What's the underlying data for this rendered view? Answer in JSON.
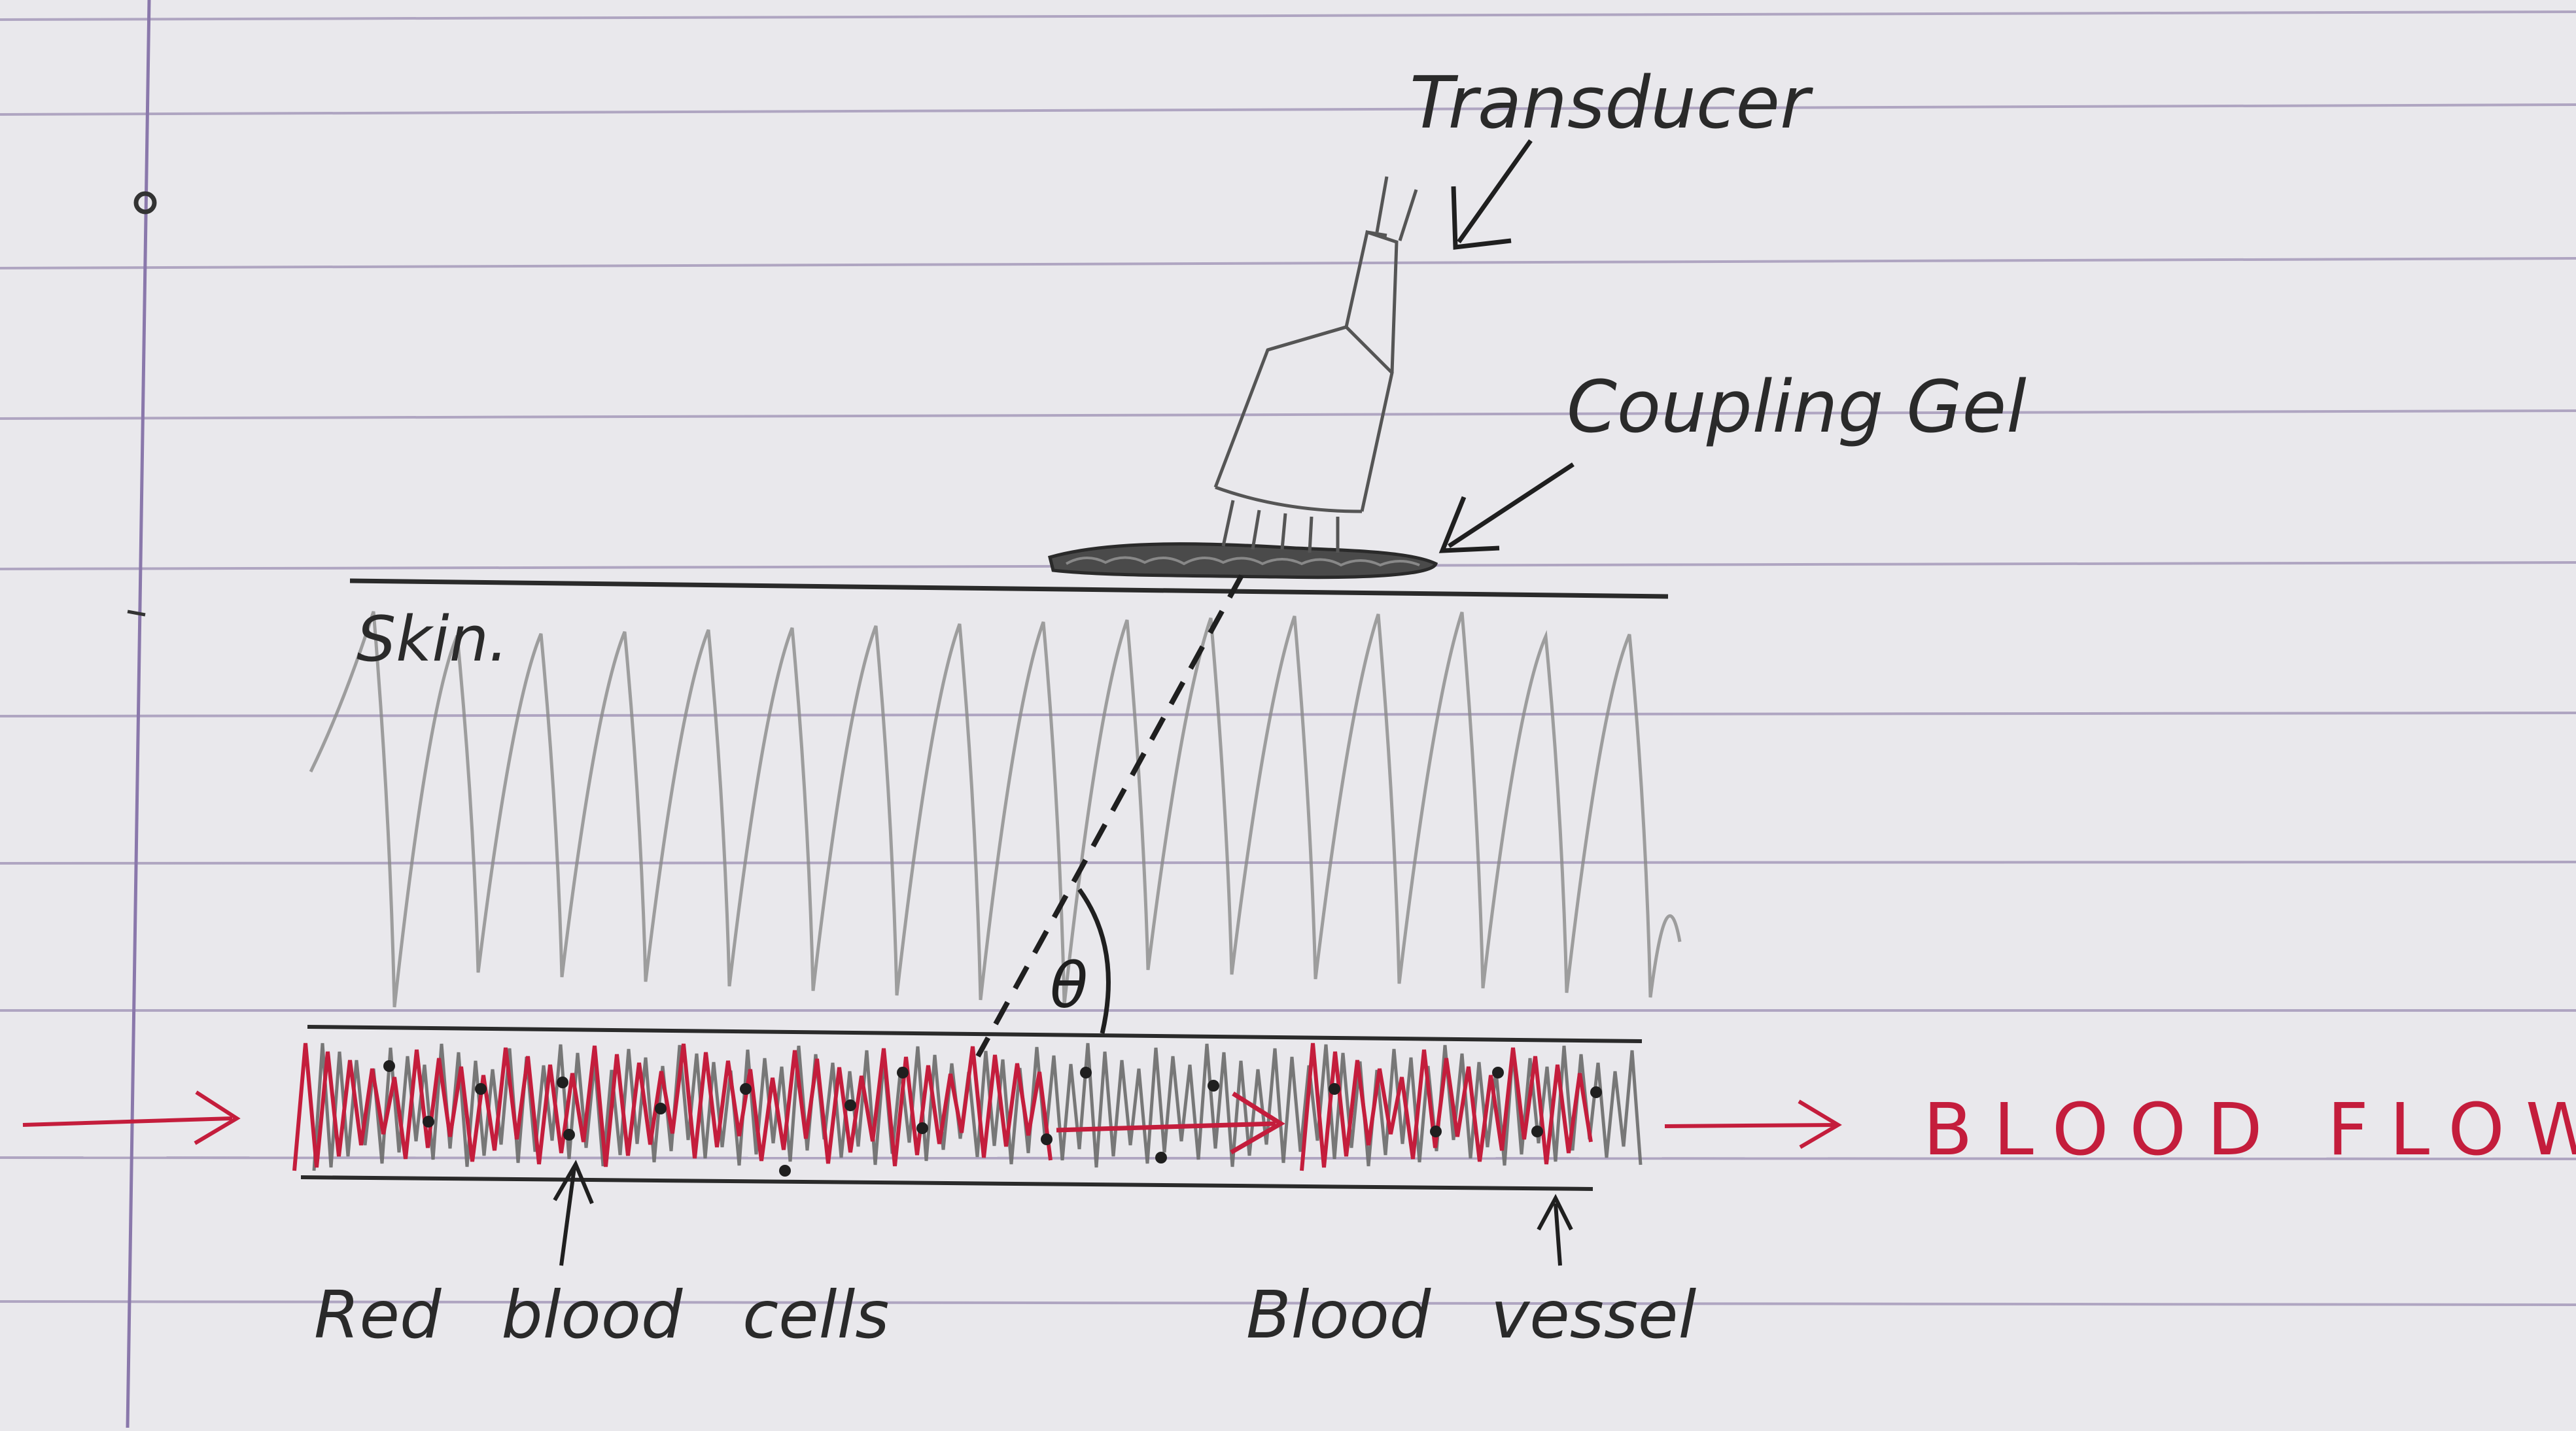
{
  "labels": {
    "transducer": "Transducer",
    "coupling_gel": "Coupling Gel",
    "skin": "Skin.",
    "theta": "θ",
    "blood_flow": "BLOOD FLOW.",
    "red_blood_cells": "Red blood cells",
    "blood_vessel": "Blood vessel"
  },
  "colors": {
    "paper": "#e9e8ec",
    "ruled_line": "#9c8fb3",
    "margin_line": "#8a78ab",
    "ink": "#2a2a2a",
    "pencil": "#8a8a8a",
    "red_ink": "#c41d3c"
  }
}
